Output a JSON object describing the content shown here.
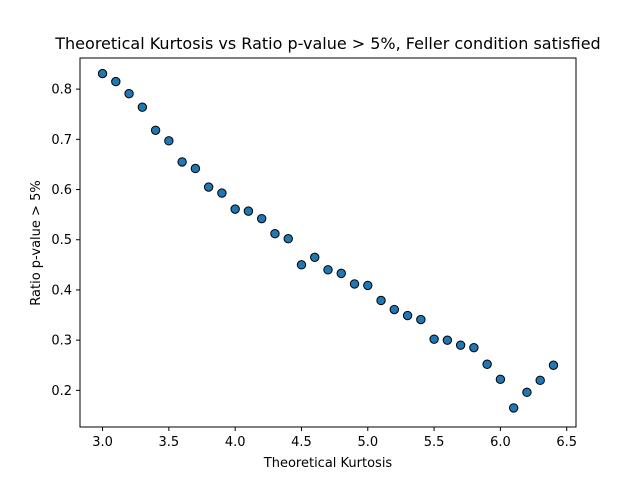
{
  "chart_data": {
    "type": "scatter",
    "title": "Theoretical Kurtosis vs Ratio p-value > 5%, Feller condition satisfied",
    "xlabel": "Theoretical Kurtosis",
    "ylabel": "Ratio p-value > 5%",
    "xlim": [
      2.83,
      6.57
    ],
    "ylim": [
      0.127,
      0.862
    ],
    "xticks": [
      "3.0",
      "3.5",
      "4.0",
      "4.5",
      "5.0",
      "5.5",
      "6.0",
      "6.5"
    ],
    "yticks": [
      "0.2",
      "0.3",
      "0.4",
      "0.5",
      "0.6",
      "0.7",
      "0.8"
    ],
    "grid": false,
    "legend": "none",
    "marker_color": "#1f77b4",
    "marker_edge_color": "#000000",
    "series": [
      {
        "x": [
          3.0,
          3.1,
          3.2,
          3.3,
          3.4,
          3.5,
          3.6,
          3.7,
          3.8,
          3.9,
          4.0,
          4.1,
          4.2,
          4.3,
          4.4,
          4.5,
          4.6,
          4.7,
          4.8,
          4.9,
          5.0,
          5.1,
          5.2,
          5.3,
          5.4,
          5.5,
          5.6,
          5.7,
          5.8,
          5.9,
          6.0,
          6.1,
          6.2,
          6.3,
          6.4
        ],
        "y": [
          0.831,
          0.815,
          0.791,
          0.764,
          0.718,
          0.697,
          0.655,
          0.642,
          0.605,
          0.593,
          0.561,
          0.557,
          0.542,
          0.512,
          0.502,
          0.45,
          0.465,
          0.44,
          0.433,
          0.412,
          0.409,
          0.379,
          0.361,
          0.349,
          0.341,
          0.302,
          0.3,
          0.29,
          0.285,
          0.252,
          0.222,
          0.165,
          0.196,
          0.22,
          0.25
        ]
      }
    ]
  }
}
